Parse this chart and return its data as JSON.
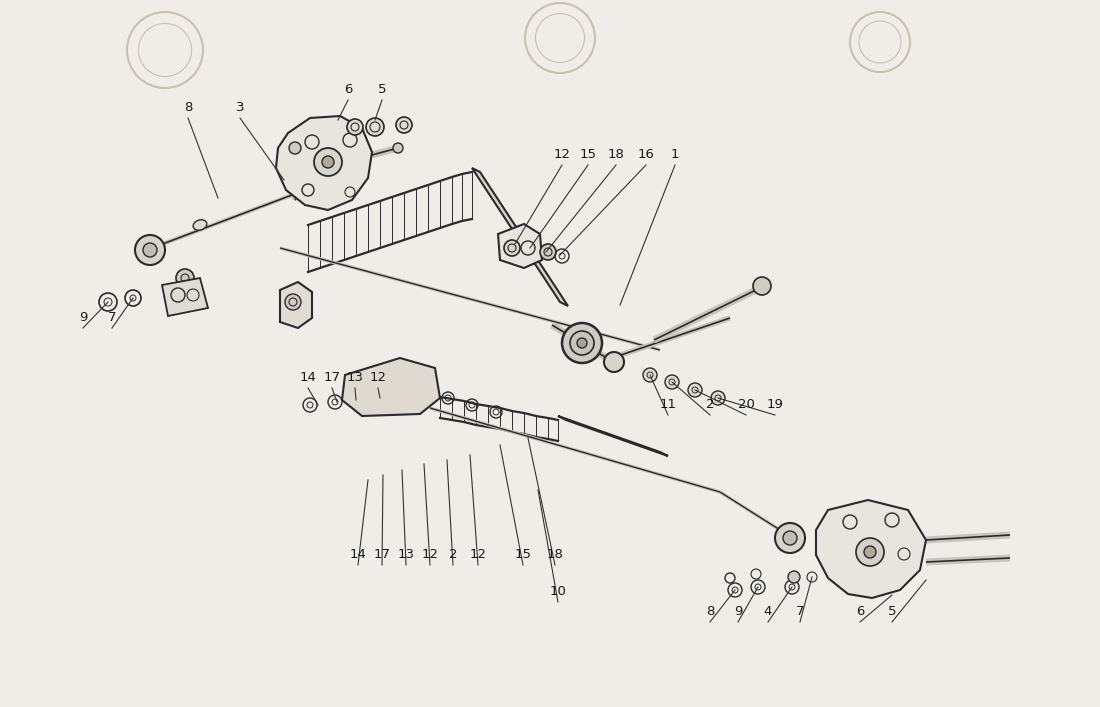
{
  "bg_color": "#f0ede8",
  "line_color": "#2a2a2a",
  "text_color": "#1a1a1a",
  "fig_width": 11.0,
  "fig_height": 7.07,
  "watermark_circles": [
    [
      165,
      50,
      38
    ],
    [
      560,
      38,
      35
    ],
    [
      880,
      42,
      30
    ]
  ]
}
